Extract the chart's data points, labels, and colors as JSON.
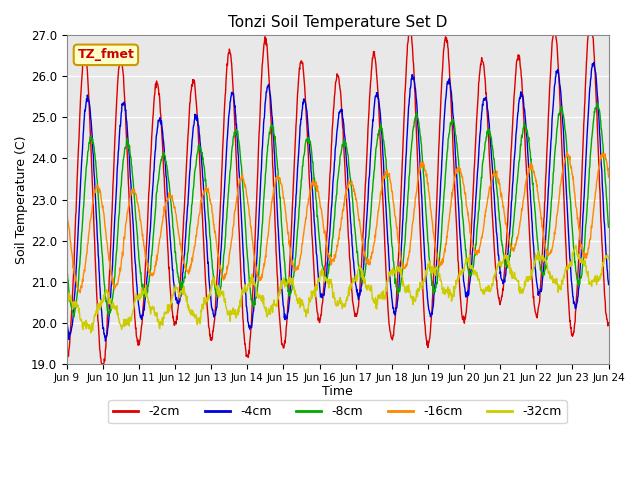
{
  "title": "Tonzi Soil Temperature Set D",
  "xlabel": "Time",
  "ylabel": "Soil Temperature (C)",
  "ylim": [
    19.0,
    27.0
  ],
  "yticks": [
    19.0,
    20.0,
    21.0,
    22.0,
    23.0,
    24.0,
    25.0,
    26.0,
    27.0
  ],
  "xtick_labels": [
    "Jun 9",
    "Jun 10",
    "Jun 11",
    "Jun 12",
    "Jun 13",
    "Jun 14",
    "Jun 15",
    "Jun 16",
    "Jun 17",
    "Jun 18",
    "Jun 19",
    "Jun 20",
    "Jun 21",
    "Jun 22",
    "Jun 23",
    "Jun 24"
  ],
  "annotation_text": "TZ_fmet",
  "annotation_bg": "#ffffcc",
  "annotation_border": "#cc9900",
  "annotation_text_color": "#cc0000",
  "series_colors": [
    "#dd0000",
    "#0000dd",
    "#00aa00",
    "#ff8800",
    "#cccc00"
  ],
  "series_labels": [
    "-2cm",
    "-4cm",
    "-8cm",
    "-16cm",
    "-32cm"
  ],
  "bg_color": "#e8e8e8",
  "grid_color": "#ffffff",
  "duration_days": 15,
  "n_points": 1440
}
